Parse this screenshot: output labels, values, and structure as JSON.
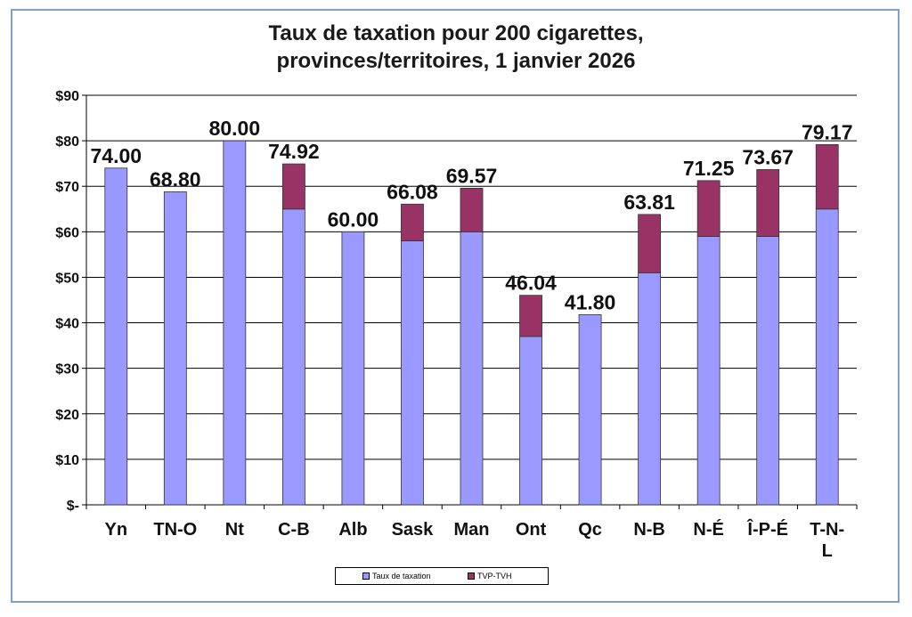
{
  "colors": {
    "base": "#9999ff",
    "tax": "#993366",
    "frame": "#7f9fd0",
    "grid": "#000000"
  },
  "chart_data": {
    "type": "bar",
    "stacked": true,
    "title": [
      "Taux de taxation pour 200 cigarettes,",
      "provinces/territoires, 1 janvier 2026"
    ],
    "categories": [
      "Yn",
      "TN-O",
      "Nt",
      "C-B",
      "Alb",
      "Sask",
      "Man",
      "Ont",
      "Qc",
      "N-B",
      "N-É",
      "Î-P-É",
      "T-N-L"
    ],
    "series": [
      {
        "name": "Taux de taxation",
        "values": [
          74.0,
          68.8,
          80.0,
          65,
          60.0,
          58,
          60,
          37,
          41.8,
          51,
          59,
          59,
          65
        ]
      },
      {
        "name": "TVP-TVH",
        "values": [
          0,
          0,
          0,
          9.92,
          0,
          8.08,
          9.57,
          9.04,
          0,
          12.81,
          12.25,
          14.67,
          14.17
        ]
      }
    ],
    "totals_labels": [
      "74.00",
      "68.80",
      "80.00",
      "74.92",
      "60.00",
      "66.08",
      "69.57",
      "46.04",
      "41.80",
      "63.81",
      "71.25",
      "73.67",
      "79.17"
    ],
    "totals": [
      74.0,
      68.8,
      80.0,
      74.92,
      60.0,
      66.08,
      69.57,
      46.04,
      41.8,
      63.81,
      71.25,
      73.67,
      79.17
    ],
    "ylim": [
      0,
      90
    ],
    "yticks": [
      0,
      10,
      20,
      30,
      40,
      50,
      60,
      70,
      80,
      90
    ],
    "ytick_labels": [
      "$-",
      "$10",
      "$20",
      "$30",
      "$40",
      "$50",
      "$60",
      "$70",
      "$80",
      "$90"
    ],
    "grid": true,
    "legend": "bottom-center"
  }
}
